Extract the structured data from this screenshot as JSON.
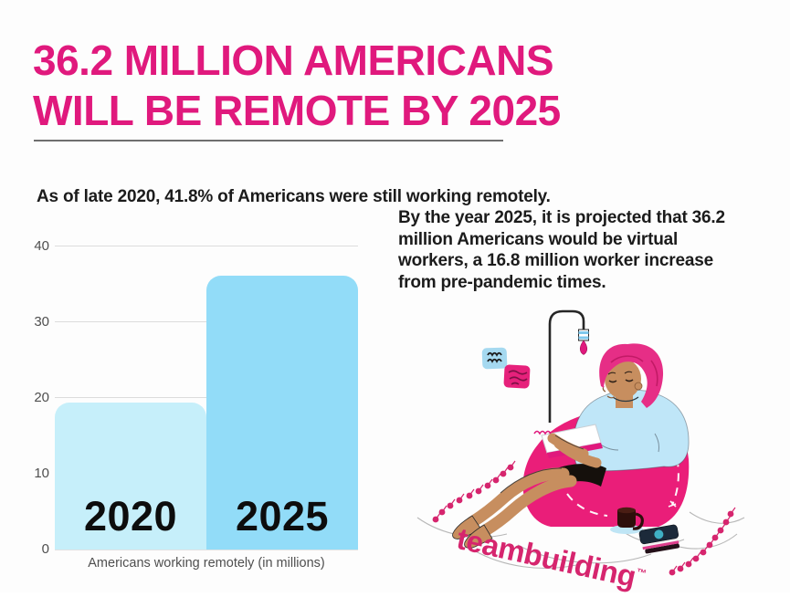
{
  "page": {
    "title_line1": "36.2 MILLION AMERICANS",
    "title_line2": "WILL BE REMOTE BY 2025",
    "subtitle": "As of late 2020, 41.8% of Americans were still working remotely.",
    "body_lines": [
      "By the year 2025, it is projected that 36.2",
      "million Americans would be virtual",
      "workers, a 16.8 million worker increase",
      "from pre-pandemic times."
    ],
    "brand": "teambuilding",
    "brand_tm": "™"
  },
  "colors": {
    "title_pink": "#E0197D",
    "brand_pink": "#D6256E",
    "bar_2020": "#C6EFFA",
    "bar_2025": "#92DCF8",
    "beanbag_pink": "#EA1E79",
    "shirt_blue": "#BFE6F8",
    "hair_pink": "#E62E86",
    "text_dark": "#1B1B1B",
    "axis_text": "#4F4F4F",
    "gridline": "#DCDCDC"
  },
  "chart_data": {
    "type": "bar",
    "categories": [
      "2020",
      "2025"
    ],
    "values": [
      19.4,
      36.2
    ],
    "title": "",
    "xlabel": "Americans working remotely (in millions)",
    "ylabel": "",
    "ylim": [
      0,
      40
    ],
    "yticks": [
      0,
      10,
      20,
      30,
      40
    ],
    "grid": true,
    "legend": false,
    "bar_colors": [
      "#C6EFFA",
      "#92DCF8"
    ],
    "bar_label_position": "inside-bottom"
  },
  "illustration": {
    "elements": [
      "floor-lamp-icon",
      "sticky-notes-icon",
      "beanbag-icon",
      "remote-worker-person",
      "laptop-icon",
      "coffee-mug-icon",
      "notebook-icon",
      "dot-garland-left",
      "dot-garland-right",
      "floor-swirls"
    ]
  }
}
